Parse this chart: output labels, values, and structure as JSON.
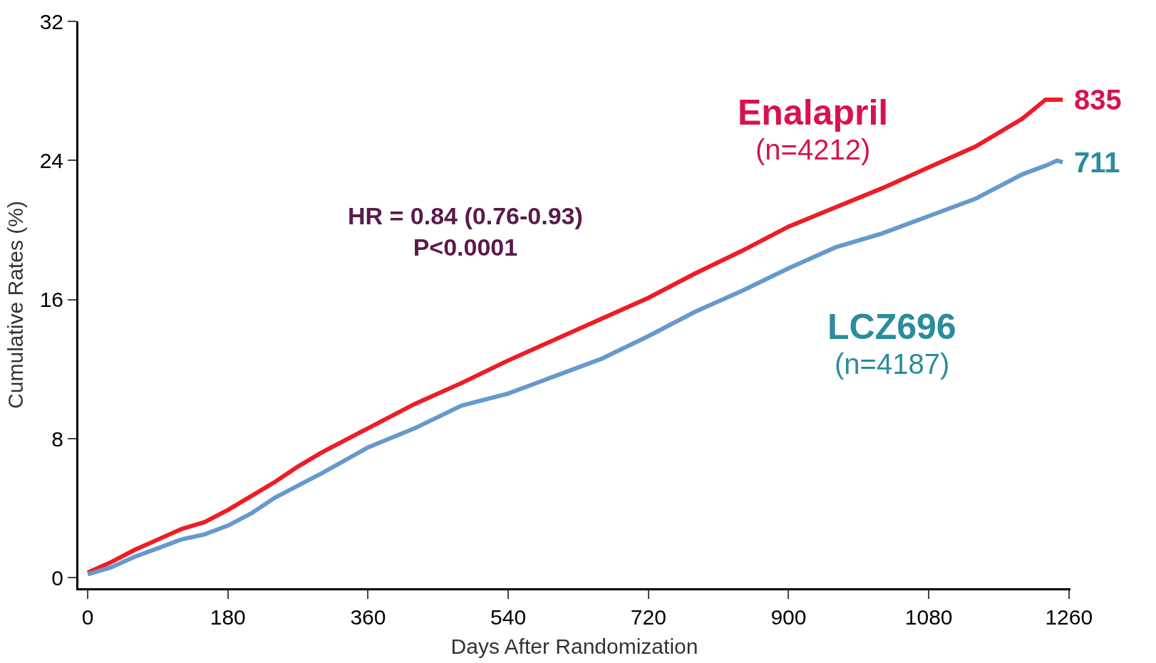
{
  "chart_data": {
    "type": "line",
    "xlabel": "Days After Randomization",
    "ylabel": "Cumulative Rates (%)",
    "xlim": [
      -12,
      1262
    ],
    "xticks": [
      0,
      180,
      360,
      540,
      720,
      900,
      1080,
      1260
    ],
    "ylim": [
      -0.6,
      32
    ],
    "yticks": [
      0,
      8,
      16,
      24,
      32
    ],
    "legend": false,
    "line_style": "solid",
    "marker": "none",
    "series": [
      {
        "name": "Enalapril",
        "color": "#ee1c25",
        "x": [
          0,
          30,
          60,
          90,
          120,
          150,
          180,
          210,
          240,
          270,
          300,
          360,
          420,
          480,
          540,
          600,
          660,
          720,
          780,
          840,
          900,
          960,
          1020,
          1080,
          1140,
          1200,
          1230,
          1252
        ],
        "values": [
          0.3,
          0.9,
          1.6,
          2.2,
          2.8,
          3.2,
          3.9,
          4.7,
          5.5,
          6.4,
          7.2,
          8.6,
          10.0,
          11.2,
          12.5,
          13.7,
          14.9,
          16.1,
          17.5,
          18.8,
          20.2,
          21.3,
          22.4,
          23.6,
          24.8,
          26.4,
          27.5,
          27.5
        ]
      },
      {
        "name": "LCZ696",
        "color": "#6699cc",
        "x": [
          0,
          30,
          60,
          90,
          120,
          150,
          180,
          210,
          240,
          270,
          300,
          360,
          420,
          480,
          540,
          600,
          660,
          720,
          780,
          840,
          900,
          960,
          1020,
          1080,
          1140,
          1200,
          1230,
          1245,
          1252
        ],
        "values": [
          0.2,
          0.6,
          1.2,
          1.7,
          2.2,
          2.5,
          3.0,
          3.7,
          4.6,
          5.3,
          6.0,
          7.5,
          8.6,
          9.9,
          10.6,
          11.6,
          12.6,
          13.9,
          15.3,
          16.5,
          17.8,
          19.0,
          19.8,
          20.8,
          21.8,
          23.2,
          23.7,
          24.0,
          23.9
        ]
      }
    ],
    "annotations": [
      "(n=4212)",
      {
        "text": "835",
        "x": 1252,
        "y": 27.5
      },
      "(n=4187)",
      {
        "text": "711",
        "x": 1252,
        "y": 23.9
      },
      "HR = 0.84 (0.76-0.93)\nP<0.0001"
    ]
  }
}
